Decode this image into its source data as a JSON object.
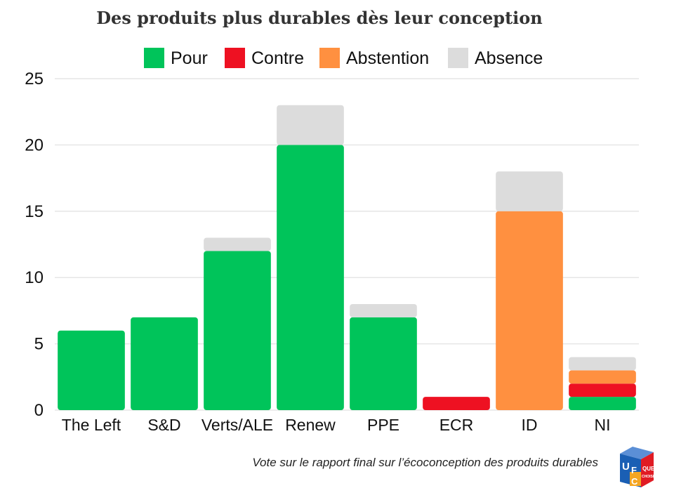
{
  "chart_data": {
    "type": "bar",
    "stacked": true,
    "title": "Des produits plus durables dès leur conception",
    "categories": [
      "The Left",
      "S&D",
      "Verts/ALE",
      "Renew",
      "PPE",
      "ECR",
      "ID",
      "NI"
    ],
    "series": [
      {
        "name": "Pour",
        "color": "#00c45a",
        "values": [
          6,
          7,
          12,
          20,
          7,
          0,
          0,
          1
        ]
      },
      {
        "name": "Contre",
        "color": "#ee1122",
        "values": [
          0,
          0,
          0,
          0,
          0,
          1,
          0,
          1
        ]
      },
      {
        "name": "Abstention",
        "color": "#ff9040",
        "values": [
          0,
          0,
          0,
          0,
          0,
          0,
          15,
          1
        ]
      },
      {
        "name": "Absence",
        "color": "#dcdcdc",
        "values": [
          0,
          0,
          1,
          3,
          1,
          0,
          3,
          1
        ]
      }
    ],
    "yticks": [
      "0",
      "5",
      "10",
      "15",
      "20",
      "25"
    ],
    "ylim": [
      0,
      25
    ],
    "grid": true,
    "legend_position": "top",
    "caption": "Vote sur le rapport final sur l’écoconception des produits durables"
  },
  "logo": {
    "letters": [
      "U",
      "F",
      "C",
      "QUE",
      "CHOISIR"
    ],
    "colors": [
      "#1a5fb4",
      "#e01b24",
      "#f5a623"
    ]
  }
}
